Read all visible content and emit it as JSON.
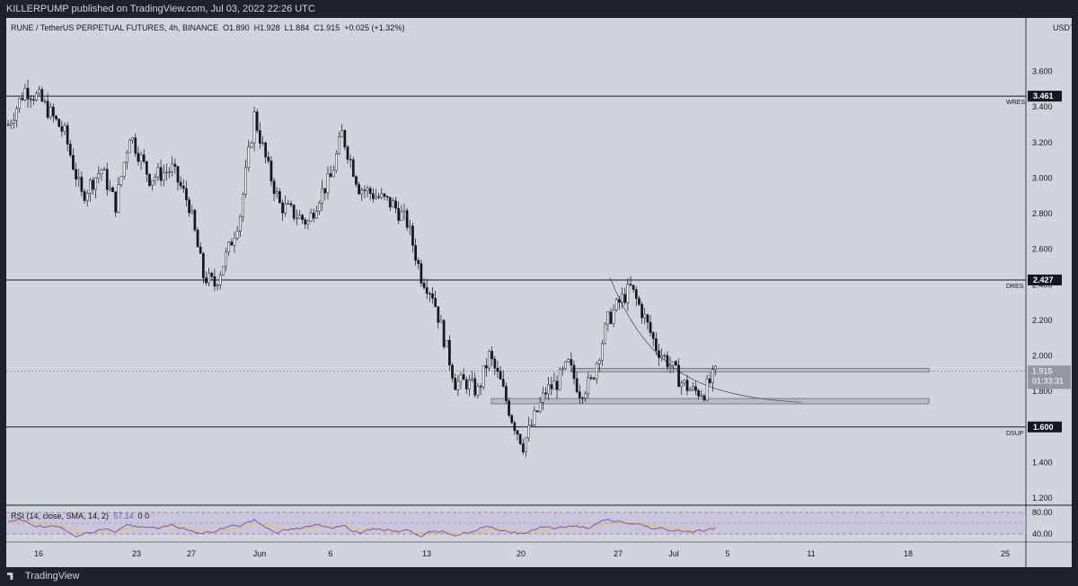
{
  "header": {
    "publisher": "KILLERPUMP published on TradingView.com, Jul 03, 2022 22:26 UTC"
  },
  "legend": {
    "symbol": "RUNE / TetherUS PERPETUAL FUTURES, 4h, BINANCE",
    "open": "O1.890",
    "high": "H1.928",
    "low": "L1.884",
    "close": "C1.915",
    "change": "+0.025 (+1.32%)"
  },
  "price_axis": {
    "currency": "USDT",
    "ticks": [
      "3.600",
      "3.400",
      "3.200",
      "3.000",
      "2.800",
      "2.600",
      "2.400",
      "2.200",
      "2.000",
      "1.800",
      "1.400",
      "1.200"
    ],
    "current_price": "1.915",
    "countdown": "01:33:31"
  },
  "levels": [
    {
      "label": "WRES",
      "value": "3.461"
    },
    {
      "label": "DRES",
      "value": "2.427"
    },
    {
      "label": "DSUP",
      "value": "1.600"
    }
  ],
  "time_axis": {
    "ticks": [
      "16",
      "23",
      "27",
      "Jun",
      "6",
      "13",
      "20",
      "27",
      "Jul",
      "5",
      "11",
      "18",
      "25"
    ]
  },
  "rsi": {
    "legend": "RSI (14, close, SMA, 14, 2)",
    "value": "57.14",
    "extra": "0 0",
    "axis_ticks": [
      "80.00",
      "40.00"
    ]
  },
  "footer": {
    "brand": "TradingView"
  },
  "colors": {
    "background": "#d1d4dc",
    "candle": "#131722",
    "rsi_line": "#7e57c2",
    "rsi_sma": "#f0c030",
    "frame": "#1e222d"
  },
  "chart_data": {
    "type": "candlestick",
    "symbol": "RUNE/USDT Perpetual",
    "interval": "4h",
    "ylim": [
      1.2,
      3.8
    ],
    "horizontal_levels": [
      3.461,
      2.427,
      1.6
    ],
    "zones": [
      [
        1.91,
        1.93
      ],
      [
        1.73,
        1.76
      ]
    ],
    "rsi_range": [
      20,
      90
    ],
    "path": [
      [
        0,
        3.3
      ],
      [
        6,
        3.5
      ],
      [
        11,
        3.45
      ],
      [
        20,
        3.25
      ],
      [
        26,
        2.9
      ],
      [
        33,
        3.05
      ],
      [
        38,
        2.85
      ],
      [
        43,
        3.25
      ],
      [
        50,
        3.0
      ],
      [
        58,
        3.05
      ],
      [
        64,
        2.85
      ],
      [
        69,
        2.45
      ],
      [
        73,
        2.4
      ],
      [
        78,
        2.6
      ],
      [
        82,
        2.8
      ],
      [
        87,
        3.35
      ],
      [
        92,
        3.05
      ],
      [
        96,
        2.85
      ],
      [
        101,
        2.8
      ],
      [
        106,
        2.75
      ],
      [
        110,
        2.9
      ],
      [
        114,
        3.0
      ],
      [
        118,
        3.25
      ],
      [
        124,
        2.95
      ],
      [
        130,
        2.9
      ],
      [
        136,
        2.85
      ],
      [
        141,
        2.75
      ],
      [
        146,
        2.45
      ],
      [
        150,
        2.35
      ],
      [
        154,
        2.1
      ],
      [
        158,
        1.85
      ],
      [
        162,
        1.85
      ],
      [
        166,
        1.8
      ],
      [
        170,
        2.0
      ],
      [
        174,
        1.85
      ],
      [
        178,
        1.65
      ],
      [
        182,
        1.5
      ],
      [
        186,
        1.65
      ],
      [
        190,
        1.8
      ],
      [
        194,
        1.85
      ],
      [
        198,
        1.95
      ],
      [
        202,
        1.8
      ],
      [
        206,
        1.85
      ],
      [
        212,
        2.2
      ],
      [
        216,
        2.3
      ],
      [
        220,
        2.38
      ],
      [
        224,
        2.25
      ],
      [
        229,
        2.05
      ],
      [
        234,
        1.95
      ],
      [
        238,
        1.85
      ],
      [
        242,
        1.8
      ],
      [
        246,
        1.8
      ],
      [
        250,
        1.9
      ]
    ]
  }
}
